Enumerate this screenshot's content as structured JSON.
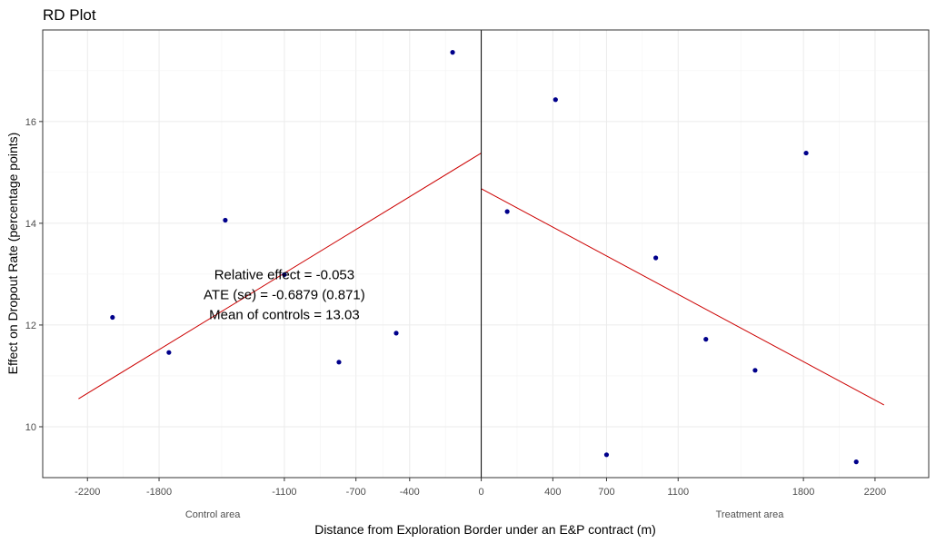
{
  "chart_data": {
    "type": "scatter",
    "title": "RD Plot",
    "xlabel": "Distance from Exploration Border under an E&P contract (m)",
    "ylabel": "Effect on Dropout Rate (percentage points)",
    "xlim": [
      -2450,
      2500
    ],
    "ylim": [
      9.0,
      17.8
    ],
    "x_ticks": [
      -2200,
      -1800,
      -1100,
      -700,
      -400,
      0,
      400,
      700,
      1100,
      1800,
      2200
    ],
    "x_tick_labels": [
      "-2200",
      "-1800",
      "-1100",
      "-700",
      "-400",
      "0",
      "400",
      "700",
      "1100",
      "1800",
      "2200"
    ],
    "y_ticks": [
      10,
      12,
      14,
      16
    ],
    "y_tick_labels": [
      "10",
      "12",
      "14",
      "16"
    ],
    "cutoff": 0,
    "region_labels": [
      {
        "text": "Control area",
        "x": -1500
      },
      {
        "text": "Treatment area",
        "x": 1500
      }
    ],
    "series": [
      {
        "color": "#00008B",
        "points": [
          {
            "x": -2060,
            "y": 12.15
          },
          {
            "x": -1745,
            "y": 11.46
          },
          {
            "x": -1430,
            "y": 14.06
          },
          {
            "x": -1100,
            "y": 12.99
          },
          {
            "x": -795,
            "y": 11.27
          },
          {
            "x": -475,
            "y": 11.84
          },
          {
            "x": -160,
            "y": 17.36
          },
          {
            "x": 145,
            "y": 14.23
          },
          {
            "x": 415,
            "y": 16.43
          },
          {
            "x": 700,
            "y": 9.45
          },
          {
            "x": 975,
            "y": 13.32
          },
          {
            "x": 1255,
            "y": 11.72
          },
          {
            "x": 1530,
            "y": 11.11
          },
          {
            "x": 1815,
            "y": 15.38
          },
          {
            "x": 2095,
            "y": 9.31
          }
        ]
      }
    ],
    "fit_lines": [
      {
        "color": "#CC0000",
        "x": [
          -2250,
          0
        ],
        "y": [
          10.55,
          15.38
        ]
      },
      {
        "color": "#CC0000",
        "x": [
          0,
          2250
        ],
        "y": [
          14.68,
          10.43
        ]
      }
    ],
    "annotations": [
      "Relative effect = -0.053",
      "ATE (se) = -0.6879 (0.871)",
      "Mean of controls = 13.03"
    ],
    "annotation_anchor": {
      "x": -1100,
      "y": 12.6
    },
    "grid": true
  }
}
